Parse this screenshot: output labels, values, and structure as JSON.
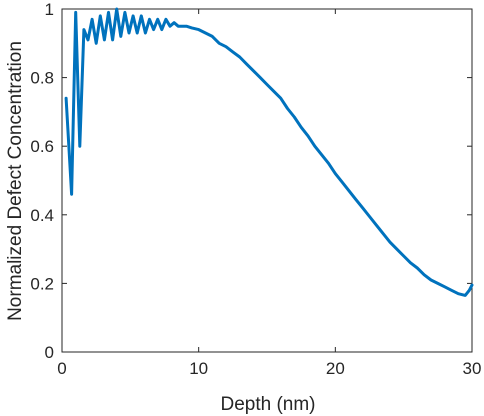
{
  "chart_data": {
    "type": "line",
    "title": "",
    "xlabel": "Depth (nm)",
    "ylabel": "Normalized Defect Concentration",
    "xlim": [
      0,
      30
    ],
    "ylim": [
      0,
      1
    ],
    "xticks": [
      0,
      10,
      20,
      30
    ],
    "yticks": [
      0,
      0.2,
      0.4,
      0.6,
      0.8,
      1
    ],
    "xtick_labels": [
      "0",
      "10",
      "20",
      "30"
    ],
    "ytick_labels": [
      "0",
      "0.2",
      "0.4",
      "0.6",
      "0.8",
      "1"
    ],
    "grid": false,
    "legend": "none",
    "line_color": "#0072BD",
    "series": [
      {
        "x": [
          0.3,
          0.7,
          1.0,
          1.3,
          1.6,
          1.9,
          2.2,
          2.5,
          2.8,
          3.1,
          3.4,
          3.7,
          4.0,
          4.3,
          4.6,
          4.9,
          5.2,
          5.5,
          5.8,
          6.1,
          6.4,
          6.7,
          7.0,
          7.3,
          7.6,
          7.9,
          8.2,
          8.5,
          8.8,
          9.1,
          9.5,
          10.0,
          10.5,
          11.0,
          11.5,
          12.0,
          12.5,
          13.0,
          13.5,
          14.0,
          14.5,
          15.0,
          15.5,
          16.0,
          16.5,
          17.0,
          17.5,
          18.0,
          18.5,
          19.0,
          19.5,
          20.0,
          20.5,
          21.0,
          21.5,
          22.0,
          22.5,
          23.0,
          23.5,
          24.0,
          24.5,
          25.0,
          25.5,
          26.0,
          26.5,
          27.0,
          27.5,
          28.0,
          28.5,
          29.0,
          29.5,
          29.8,
          30.0
        ],
        "y": [
          0.74,
          0.46,
          0.99,
          0.6,
          0.94,
          0.91,
          0.97,
          0.9,
          0.98,
          0.91,
          0.99,
          0.91,
          1.0,
          0.92,
          0.99,
          0.93,
          0.98,
          0.93,
          0.98,
          0.93,
          0.97,
          0.94,
          0.97,
          0.94,
          0.97,
          0.95,
          0.96,
          0.95,
          0.95,
          0.95,
          0.945,
          0.94,
          0.93,
          0.92,
          0.9,
          0.89,
          0.875,
          0.86,
          0.84,
          0.82,
          0.8,
          0.78,
          0.76,
          0.74,
          0.71,
          0.685,
          0.655,
          0.63,
          0.6,
          0.575,
          0.55,
          0.52,
          0.495,
          0.47,
          0.445,
          0.42,
          0.395,
          0.37,
          0.345,
          0.32,
          0.3,
          0.28,
          0.26,
          0.245,
          0.225,
          0.21,
          0.2,
          0.19,
          0.18,
          0.17,
          0.165,
          0.18,
          0.195
        ]
      }
    ]
  }
}
